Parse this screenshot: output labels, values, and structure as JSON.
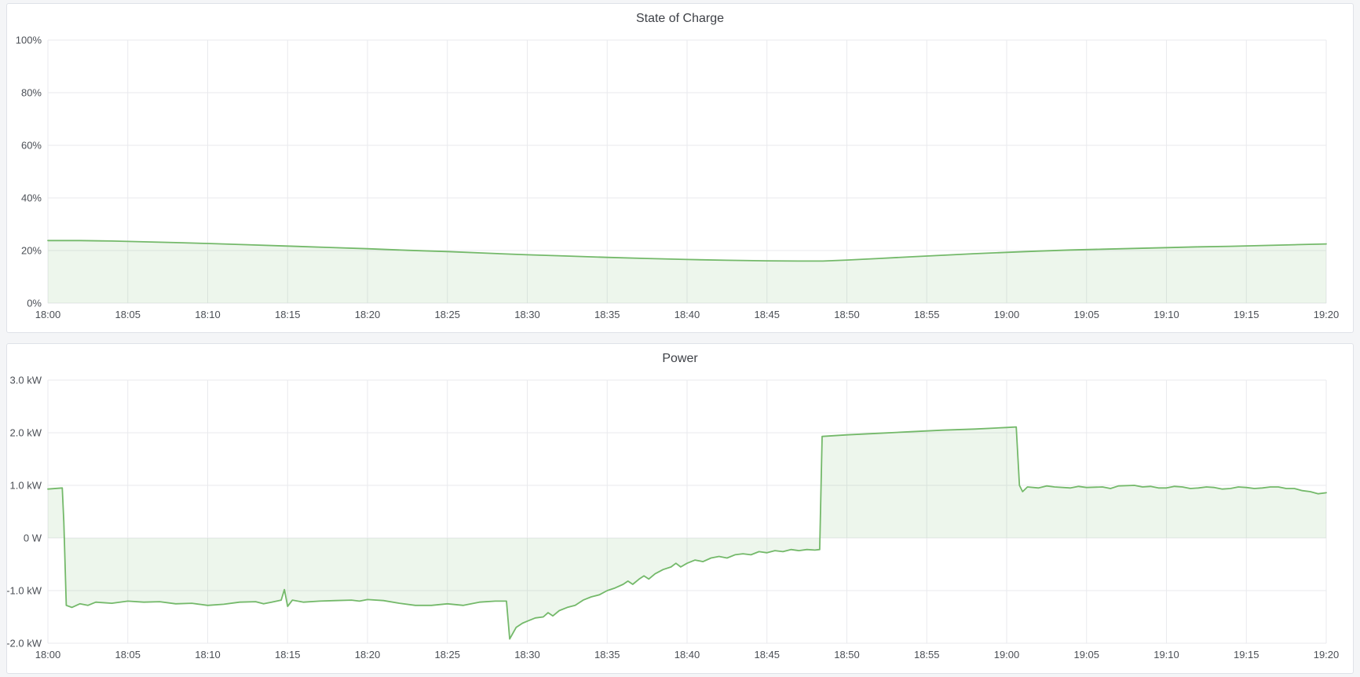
{
  "theme": {
    "page_background": "#f4f5f7",
    "panel_background": "#ffffff",
    "panel_border": "#dfe2e8",
    "grid_color": "#e9eaed",
    "text_color": "#4b4f56",
    "accent_green": "#74b96a"
  },
  "chart_data": [
    {
      "type": "area",
      "title": "State of Charge",
      "xlabel": "",
      "ylabel": "",
      "x_ticks": [
        "18:00",
        "18:05",
        "18:10",
        "18:15",
        "18:20",
        "18:25",
        "18:30",
        "18:35",
        "18:40",
        "18:45",
        "18:50",
        "18:55",
        "19:00",
        "19:05",
        "19:10",
        "19:15",
        "19:20"
      ],
      "y_ticks": [
        "100%",
        "80%",
        "60%",
        "40%",
        "20%",
        "0%"
      ],
      "ylim": [
        0,
        100
      ],
      "xlim_minutes": [
        0,
        80
      ],
      "grid": true,
      "legend": "none",
      "baseline_value": 0,
      "series": [
        {
          "name": "State of Charge",
          "color": "#74b96a",
          "fill": "rgba(116,185,106,0.13)",
          "points": [
            [
              0,
              23.8
            ],
            [
              2,
              23.8
            ],
            [
              4,
              23.6
            ],
            [
              6,
              23.3
            ],
            [
              8,
              23.0
            ],
            [
              10,
              22.7
            ],
            [
              12.5,
              22.2
            ],
            [
              15,
              21.7
            ],
            [
              17.5,
              21.2
            ],
            [
              20,
              20.7
            ],
            [
              22.5,
              20.1
            ],
            [
              25,
              19.6
            ],
            [
              27.5,
              19.0
            ],
            [
              30,
              18.4
            ],
            [
              32.5,
              17.9
            ],
            [
              35,
              17.4
            ],
            [
              37.5,
              17.0
            ],
            [
              40,
              16.6
            ],
            [
              42.5,
              16.3
            ],
            [
              45,
              16.1
            ],
            [
              47,
              16.0
            ],
            [
              48.5,
              16.0
            ],
            [
              50,
              16.4
            ],
            [
              52,
              17.0
            ],
            [
              54,
              17.6
            ],
            [
              56,
              18.2
            ],
            [
              58,
              18.8
            ],
            [
              60,
              19.3
            ],
            [
              62,
              19.8
            ],
            [
              64,
              20.2
            ],
            [
              66,
              20.5
            ],
            [
              68,
              20.8
            ],
            [
              70,
              21.1
            ],
            [
              72,
              21.4
            ],
            [
              74,
              21.6
            ],
            [
              76,
              21.9
            ],
            [
              78,
              22.2
            ],
            [
              80,
              22.5
            ]
          ]
        }
      ]
    },
    {
      "type": "area",
      "title": "Power",
      "xlabel": "",
      "ylabel": "",
      "x_ticks": [
        "18:00",
        "18:05",
        "18:10",
        "18:15",
        "18:20",
        "18:25",
        "18:30",
        "18:35",
        "18:40",
        "18:45",
        "18:50",
        "18:55",
        "19:00",
        "19:05",
        "19:10",
        "19:15",
        "19:20"
      ],
      "y_ticks": [
        "3.0 kW",
        "2.0 kW",
        "1.0 kW",
        "0 W",
        "-1.0 kW",
        "-2.0 kW"
      ],
      "ylim": [
        -2,
        3
      ],
      "xlim_minutes": [
        0,
        80
      ],
      "grid": true,
      "legend": "none",
      "baseline_value": 0,
      "series": [
        {
          "name": "Power",
          "color": "#74b96a",
          "fill": "rgba(116,185,106,0.13)",
          "points": [
            [
              0,
              0.93
            ],
            [
              0.9,
              0.95
            ],
            [
              1.0,
              0.3
            ],
            [
              1.15,
              -1.28
            ],
            [
              1.5,
              -1.32
            ],
            [
              2,
              -1.25
            ],
            [
              2.5,
              -1.28
            ],
            [
              3,
              -1.22
            ],
            [
              4,
              -1.24
            ],
            [
              5,
              -1.2
            ],
            [
              6,
              -1.22
            ],
            [
              7,
              -1.21
            ],
            [
              8,
              -1.25
            ],
            [
              9,
              -1.24
            ],
            [
              10,
              -1.28
            ],
            [
              11,
              -1.26
            ],
            [
              12,
              -1.22
            ],
            [
              13,
              -1.21
            ],
            [
              13.5,
              -1.25
            ],
            [
              14,
              -1.22
            ],
            [
              14.6,
              -1.18
            ],
            [
              14.8,
              -0.98
            ],
            [
              15.0,
              -1.3
            ],
            [
              15.3,
              -1.18
            ],
            [
              16,
              -1.22
            ],
            [
              17,
              -1.2
            ],
            [
              18,
              -1.19
            ],
            [
              19,
              -1.18
            ],
            [
              19.5,
              -1.2
            ],
            [
              20,
              -1.17
            ],
            [
              21,
              -1.19
            ],
            [
              22,
              -1.24
            ],
            [
              23,
              -1.28
            ],
            [
              24,
              -1.28
            ],
            [
              25,
              -1.25
            ],
            [
              26,
              -1.28
            ],
            [
              27,
              -1.22
            ],
            [
              28,
              -1.2
            ],
            [
              28.7,
              -1.2
            ],
            [
              28.9,
              -1.92
            ],
            [
              29.3,
              -1.7
            ],
            [
              29.7,
              -1.62
            ],
            [
              30,
              -1.58
            ],
            [
              30.5,
              -1.52
            ],
            [
              31,
              -1.5
            ],
            [
              31.3,
              -1.42
            ],
            [
              31.6,
              -1.48
            ],
            [
              32,
              -1.38
            ],
            [
              32.5,
              -1.32
            ],
            [
              33,
              -1.28
            ],
            [
              33.5,
              -1.18
            ],
            [
              34,
              -1.12
            ],
            [
              34.5,
              -1.08
            ],
            [
              35,
              -1.0
            ],
            [
              35.5,
              -0.95
            ],
            [
              36,
              -0.88
            ],
            [
              36.3,
              -0.82
            ],
            [
              36.6,
              -0.88
            ],
            [
              37,
              -0.78
            ],
            [
              37.3,
              -0.72
            ],
            [
              37.6,
              -0.78
            ],
            [
              38,
              -0.68
            ],
            [
              38.5,
              -0.6
            ],
            [
              39,
              -0.55
            ],
            [
              39.3,
              -0.48
            ],
            [
              39.6,
              -0.55
            ],
            [
              40,
              -0.48
            ],
            [
              40.5,
              -0.42
            ],
            [
              41,
              -0.45
            ],
            [
              41.5,
              -0.38
            ],
            [
              42,
              -0.35
            ],
            [
              42.5,
              -0.38
            ],
            [
              43,
              -0.32
            ],
            [
              43.5,
              -0.3
            ],
            [
              44,
              -0.32
            ],
            [
              44.5,
              -0.26
            ],
            [
              45,
              -0.28
            ],
            [
              45.5,
              -0.24
            ],
            [
              46,
              -0.26
            ],
            [
              46.5,
              -0.22
            ],
            [
              47,
              -0.24
            ],
            [
              47.5,
              -0.22
            ],
            [
              48,
              -0.23
            ],
            [
              48.3,
              -0.22
            ],
            [
              48.45,
              1.93
            ],
            [
              50,
              1.96
            ],
            [
              52,
              1.99
            ],
            [
              54,
              2.02
            ],
            [
              56,
              2.05
            ],
            [
              58,
              2.07
            ],
            [
              60,
              2.1
            ],
            [
              60.6,
              2.11
            ],
            [
              60.8,
              1.0
            ],
            [
              61,
              0.88
            ],
            [
              61.3,
              0.97
            ],
            [
              62,
              0.95
            ],
            [
              62.5,
              0.99
            ],
            [
              63,
              0.97
            ],
            [
              64,
              0.95
            ],
            [
              64.5,
              0.98
            ],
            [
              65,
              0.96
            ],
            [
              66,
              0.97
            ],
            [
              66.5,
              0.94
            ],
            [
              67,
              0.99
            ],
            [
              68,
              1.0
            ],
            [
              68.5,
              0.97
            ],
            [
              69,
              0.98
            ],
            [
              69.5,
              0.95
            ],
            [
              70,
              0.95
            ],
            [
              70.5,
              0.98
            ],
            [
              71,
              0.97
            ],
            [
              71.5,
              0.94
            ],
            [
              72,
              0.95
            ],
            [
              72.5,
              0.97
            ],
            [
              73,
              0.96
            ],
            [
              73.5,
              0.93
            ],
            [
              74,
              0.94
            ],
            [
              74.5,
              0.97
            ],
            [
              75,
              0.96
            ],
            [
              75.5,
              0.94
            ],
            [
              76,
              0.95
            ],
            [
              76.5,
              0.97
            ],
            [
              77,
              0.97
            ],
            [
              77.5,
              0.94
            ],
            [
              78,
              0.94
            ],
            [
              78.5,
              0.9
            ],
            [
              79,
              0.88
            ],
            [
              79.5,
              0.84
            ],
            [
              80,
              0.86
            ]
          ]
        }
      ]
    }
  ]
}
